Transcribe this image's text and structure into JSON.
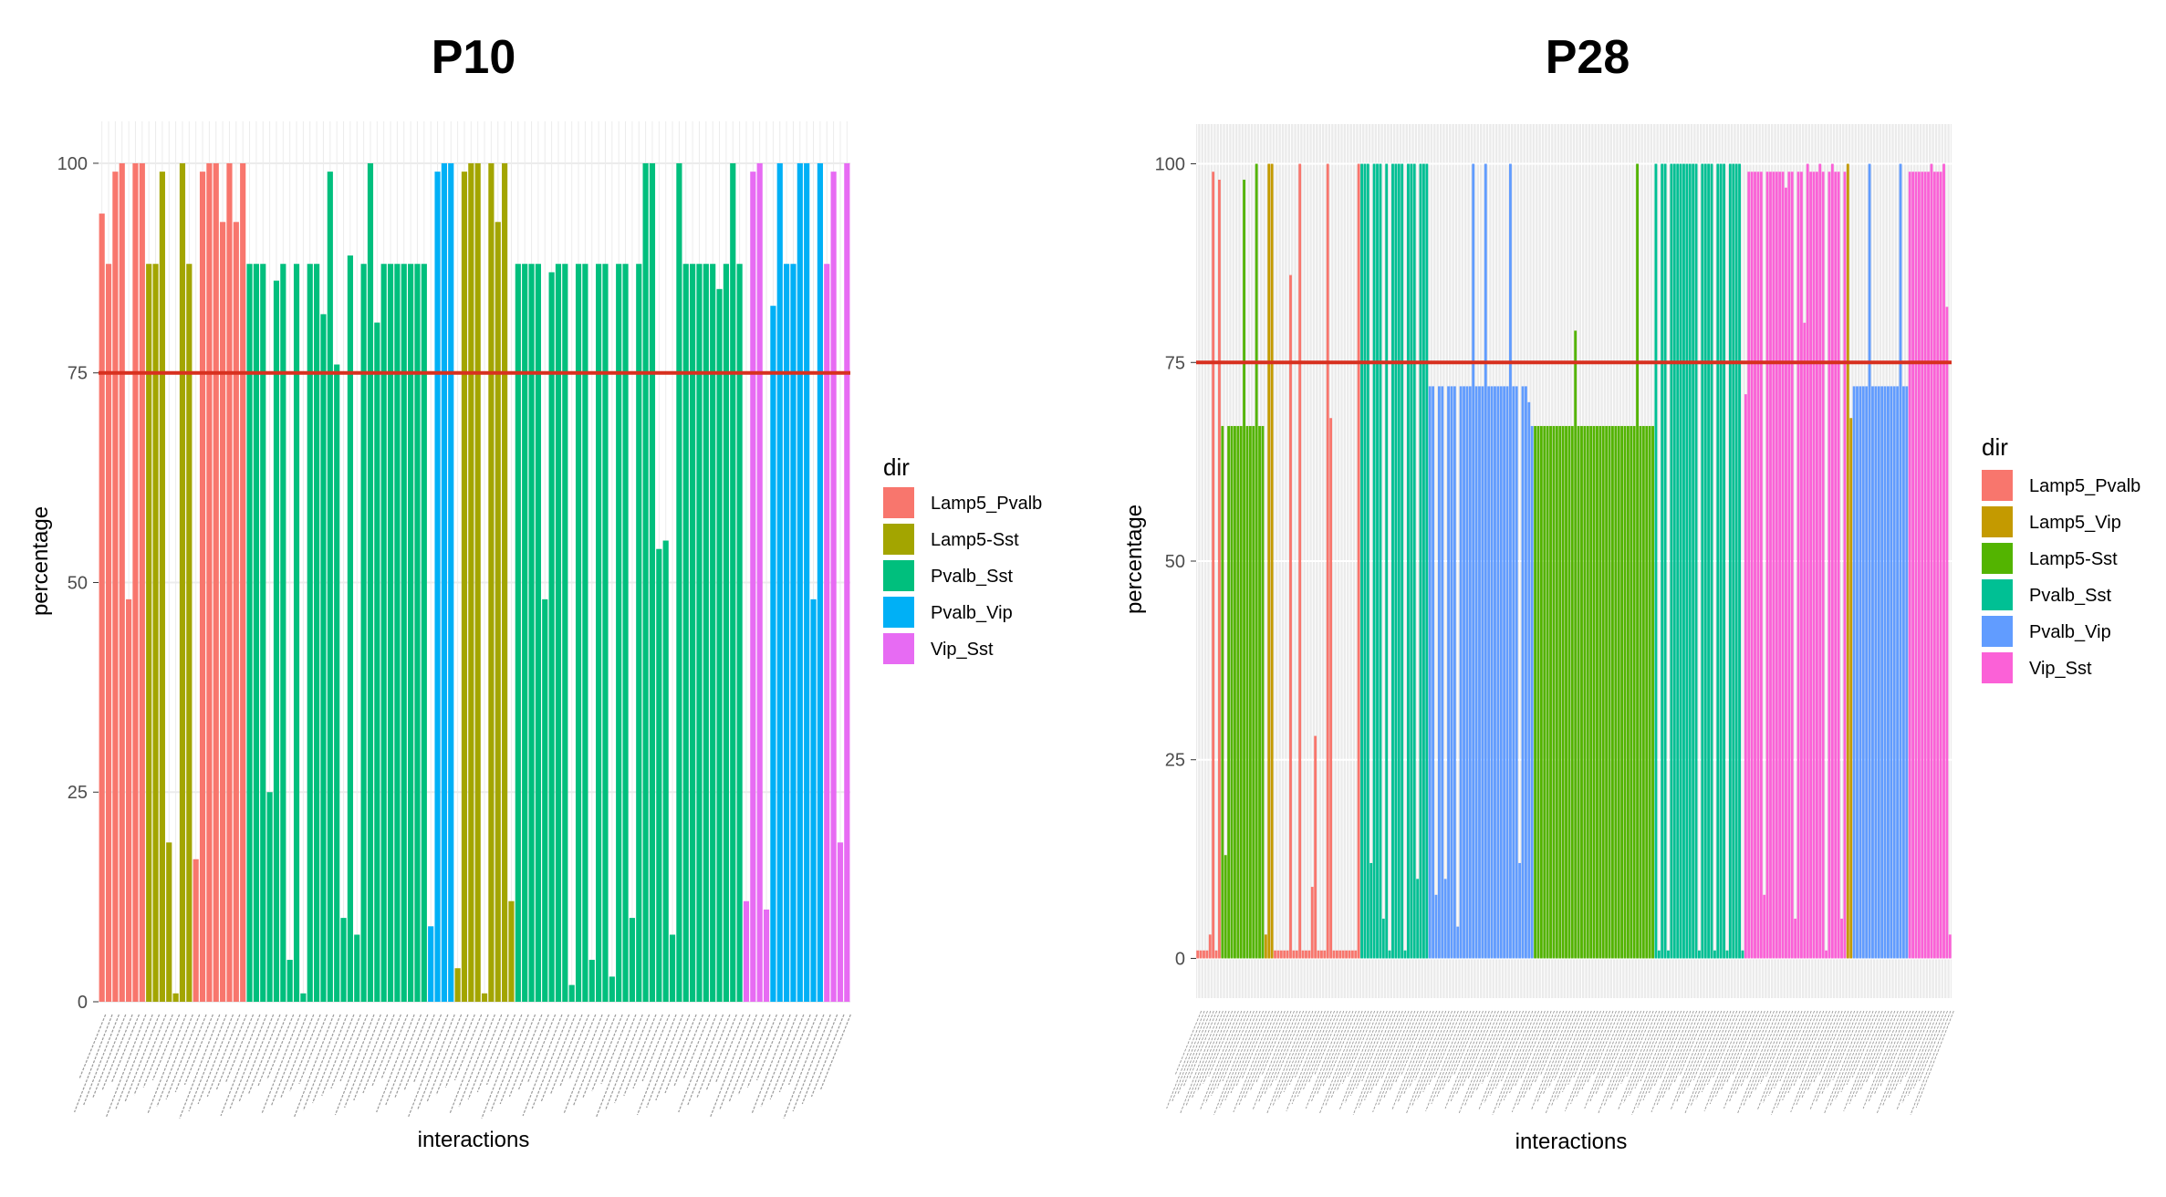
{
  "chart_data": [
    {
      "type": "bar",
      "title": "P10",
      "xlabel": "interactions",
      "ylabel": "percentage",
      "ylim": [
        0,
        105
      ],
      "yticks": [
        0,
        25,
        50,
        75,
        100
      ],
      "reference_line": {
        "y": 75,
        "color": "#d7301f"
      },
      "panel_background": "#ffffff",
      "grid": "light",
      "legend": {
        "title": "dir",
        "position": "right"
      },
      "tick_labels_note": "x tick labels illegible (tiny, rotated)",
      "series": [
        {
          "name": "Lamp5_Pvalb",
          "color": "#F8766D",
          "values": [
            94,
            88,
            99,
            100,
            48,
            100,
            100
          ]
        },
        {
          "name": "Lamp5-Sst",
          "color": "#A3A500",
          "values": [
            88,
            88,
            99,
            19,
            1,
            100,
            88
          ]
        },
        {
          "name": "Lamp5_Pvalb",
          "color": "#F8766D",
          "values": [
            17,
            99,
            100,
            100,
            93,
            100,
            93,
            100
          ]
        },
        {
          "name": "Pvalb_Sst",
          "color": "#00BF7D",
          "values": [
            88,
            88,
            88,
            25,
            86,
            88,
            5,
            88,
            1,
            88,
            88,
            82,
            99,
            76,
            10,
            89,
            8,
            88,
            100,
            81,
            88,
            88,
            88,
            88,
            88,
            88,
            88
          ]
        },
        {
          "name": "Pvalb_Vip",
          "color": "#00B0F6",
          "values": [
            9,
            99,
            100,
            100
          ]
        },
        {
          "name": "Lamp5-Sst",
          "color": "#A3A500",
          "values": [
            4,
            99,
            100,
            100,
            1,
            100,
            93,
            100,
            12
          ]
        },
        {
          "name": "Pvalb_Sst",
          "color": "#00BF7D",
          "values": [
            88,
            88,
            88,
            88,
            48,
            87,
            88,
            88,
            2,
            88,
            88,
            5,
            88,
            88,
            3,
            88,
            88,
            10,
            88,
            100,
            100,
            54,
            55,
            8,
            100,
            88,
            88,
            88,
            88,
            88,
            85,
            88,
            100,
            88
          ]
        },
        {
          "name": "Vip_Sst",
          "color": "#E76BF3",
          "values": [
            12,
            99,
            100,
            11
          ]
        },
        {
          "name": "Pvalb_Vip",
          "color": "#00B0F6",
          "values": [
            83,
            100,
            88,
            88,
            100,
            100,
            48,
            100
          ]
        },
        {
          "name": "Vip_Sst",
          "color": "#E76BF3",
          "values": [
            88,
            99,
            19,
            100
          ]
        }
      ]
    },
    {
      "type": "bar",
      "title": "P28",
      "xlabel": "interactions",
      "ylabel": "percentage",
      "ylim": [
        -5,
        105
      ],
      "yticks": [
        0,
        25,
        50,
        75,
        100
      ],
      "reference_line": {
        "y": 75,
        "color": "#d7301f"
      },
      "panel_background": "#ebebeb",
      "grid": "white",
      "legend": {
        "title": "dir",
        "position": "right"
      },
      "tick_labels_note": "x tick labels illegible (tiny, rotated)",
      "series": [
        {
          "name": "Lamp5_Pvalb",
          "color": "#F8766D",
          "values": [
            1,
            1,
            1,
            1,
            3,
            99,
            1,
            98
          ]
        },
        {
          "name": "Lamp5-Sst",
          "color": "#53B400",
          "values": [
            67,
            13,
            67,
            67,
            67,
            67,
            67,
            98,
            67,
            67,
            67,
            100,
            67,
            67
          ]
        },
        {
          "name": "Lamp5_Vip",
          "color": "#C49A00",
          "values": [
            3,
            100,
            100
          ]
        },
        {
          "name": "Lamp5_Pvalb",
          "color": "#F8766D",
          "values": [
            1,
            1,
            1,
            1,
            1,
            86,
            1,
            1,
            100,
            1,
            1,
            1,
            9,
            28,
            1,
            1,
            1,
            100,
            68,
            1,
            1,
            1,
            1,
            1,
            1,
            1,
            1,
            100
          ]
        },
        {
          "name": "Pvalb_Sst",
          "color": "#00C094",
          "values": [
            100,
            100,
            100,
            12,
            100,
            100,
            100,
            5,
            100,
            1,
            100,
            100,
            100,
            100,
            1,
            100,
            100,
            100,
            10,
            100,
            100,
            100
          ]
        },
        {
          "name": "Pvalb_Vip",
          "color": "#619CFF",
          "values": [
            72,
            72,
            8,
            72,
            72,
            10,
            72,
            72,
            72,
            4,
            72,
            72,
            72,
            72,
            100,
            72,
            72,
            72,
            100,
            72,
            72,
            72,
            72,
            72,
            72,
            72,
            100,
            72,
            72,
            12,
            72,
            72,
            70,
            67
          ]
        },
        {
          "name": "Lamp5-Sst",
          "color": "#53B400",
          "values": [
            67,
            67,
            67,
            67,
            67,
            67,
            67,
            67,
            67,
            67,
            67,
            67,
            67,
            79,
            67,
            67,
            67,
            67,
            67,
            67,
            67,
            67,
            67,
            67,
            67,
            67,
            67,
            67,
            67,
            67,
            67,
            67,
            67,
            100,
            67,
            67,
            67,
            67,
            67
          ]
        },
        {
          "name": "Pvalb_Sst",
          "color": "#00C094",
          "values": [
            100,
            1,
            100,
            100,
            1,
            100,
            100,
            100,
            100,
            100,
            100,
            100,
            100,
            100,
            1,
            100,
            100,
            100,
            100,
            1,
            100,
            100,
            100,
            1,
            100,
            100,
            100,
            100,
            1
          ]
        },
        {
          "name": "Vip_Sst",
          "color": "#FB61D7",
          "values": [
            71,
            99,
            99,
            99,
            99,
            99,
            8,
            99,
            99,
            99,
            99,
            99,
            99,
            97,
            99,
            99,
            5,
            99,
            99,
            80,
            100,
            99,
            99,
            99,
            100,
            99,
            1,
            99,
            100,
            99,
            99,
            5,
            99
          ]
        },
        {
          "name": "Lamp5_Vip",
          "color": "#C49A00",
          "values": [
            100,
            68
          ]
        },
        {
          "name": "Pvalb_Vip",
          "color": "#619CFF",
          "values": [
            72,
            72,
            72,
            72,
            72,
            100,
            72,
            72,
            72,
            72,
            72,
            72,
            72,
            72,
            72,
            100,
            72,
            72
          ]
        },
        {
          "name": "Vip_Sst",
          "color": "#FB61D7",
          "values": [
            99,
            99,
            99,
            99,
            99,
            99,
            99,
            100,
            99,
            99,
            99,
            100,
            82,
            3
          ]
        }
      ]
    }
  ],
  "legends": [
    {
      "title": "dir",
      "items": [
        {
          "label": "Lamp5_Pvalb",
          "color": "#F8766D"
        },
        {
          "label": "Lamp5-Sst",
          "color": "#A3A500"
        },
        {
          "label": "Pvalb_Sst",
          "color": "#00BF7D"
        },
        {
          "label": "Pvalb_Vip",
          "color": "#00B0F6"
        },
        {
          "label": "Vip_Sst",
          "color": "#E76BF3"
        }
      ]
    },
    {
      "title": "dir",
      "items": [
        {
          "label": "Lamp5_Pvalb",
          "color": "#F8766D"
        },
        {
          "label": "Lamp5_Vip",
          "color": "#C49A00"
        },
        {
          "label": "Lamp5-Sst",
          "color": "#53B400"
        },
        {
          "label": "Pvalb_Sst",
          "color": "#00C094"
        },
        {
          "label": "Pvalb_Vip",
          "color": "#619CFF"
        },
        {
          "label": "Vip_Sst",
          "color": "#FB61D7"
        }
      ]
    }
  ]
}
